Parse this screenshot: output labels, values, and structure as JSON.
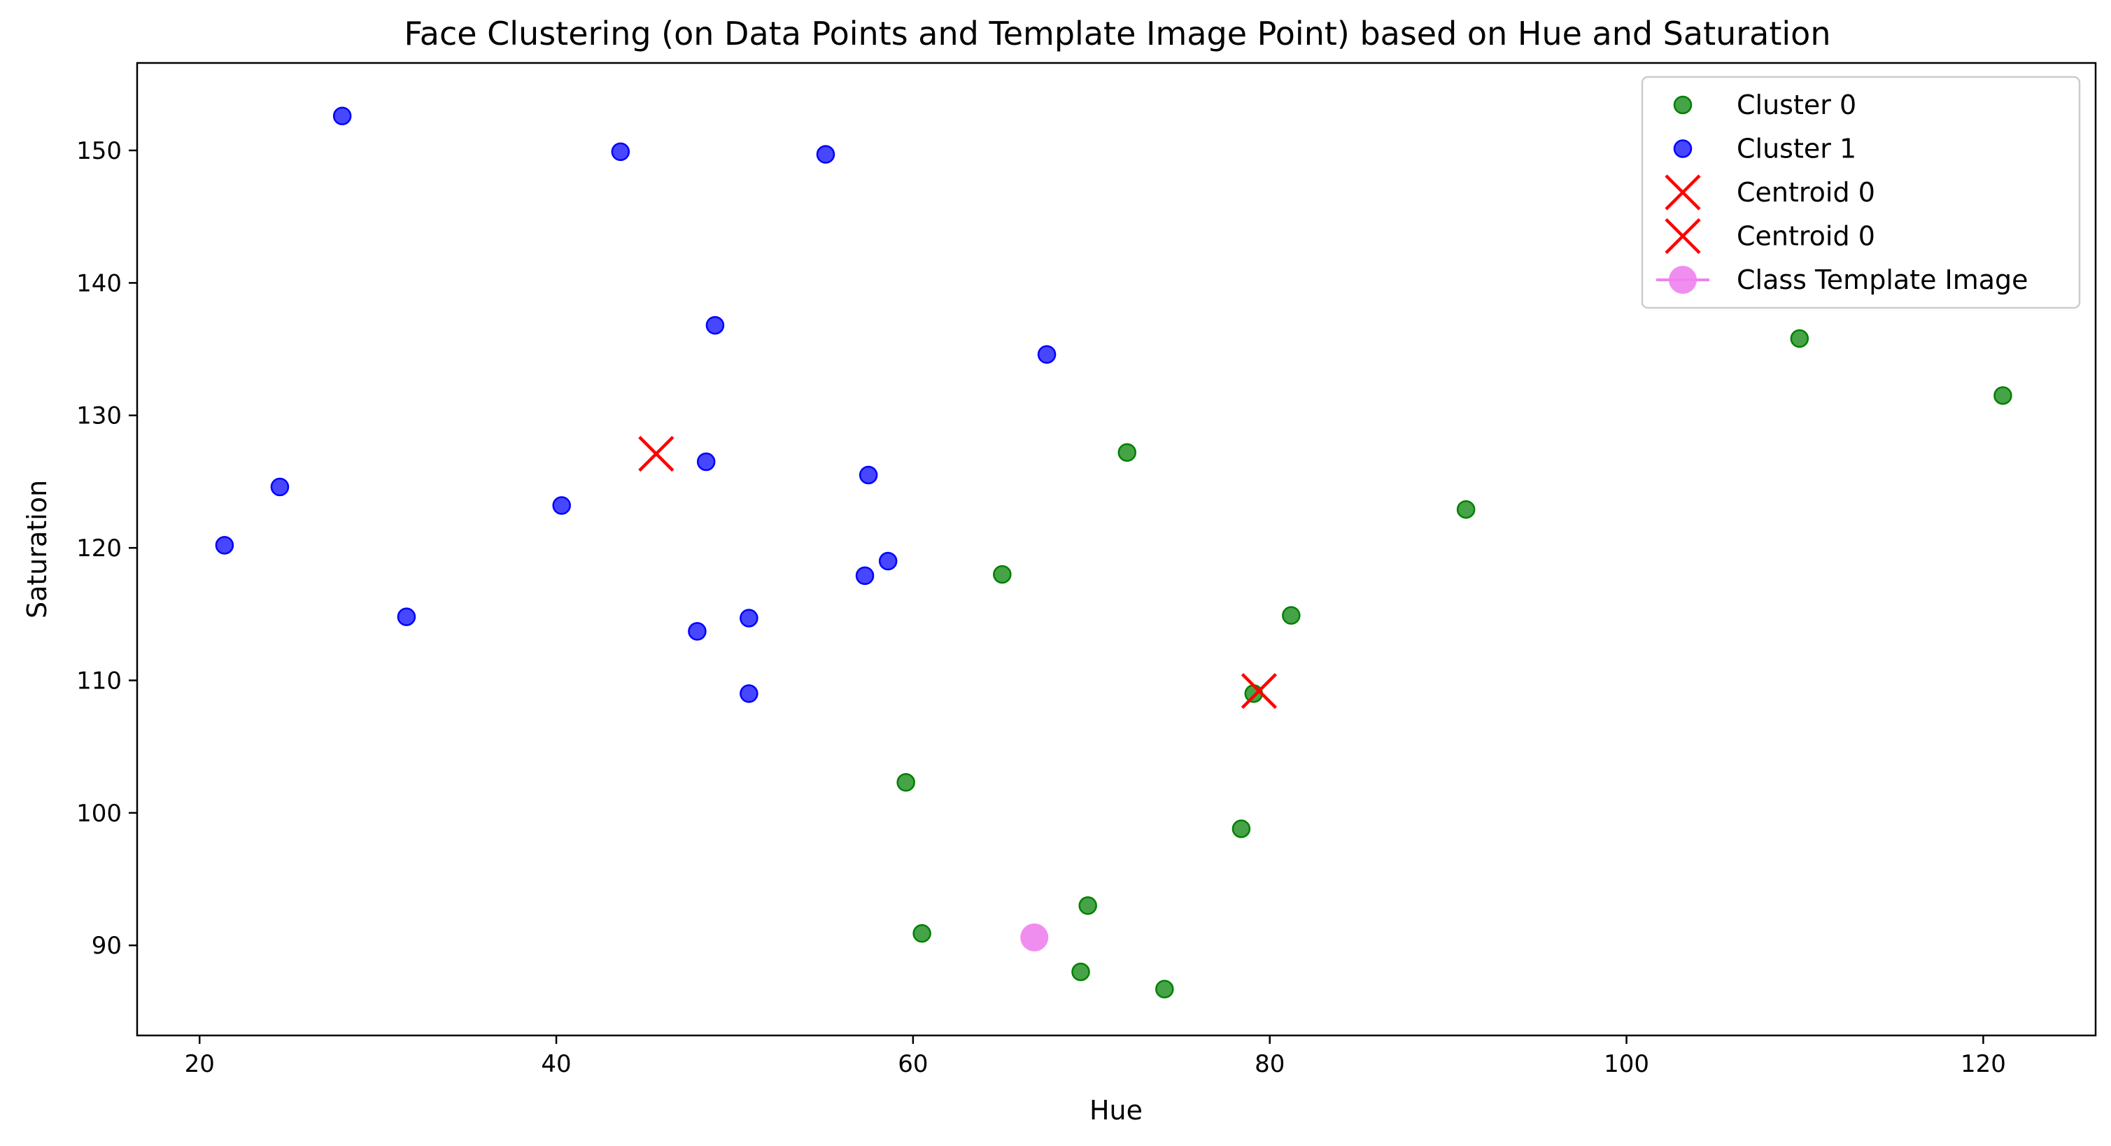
{
  "chart_data": {
    "type": "scatter",
    "title": "Face Clustering (on Data Points and Template Image Point) based on Hue and Saturation",
    "xlabel": "Hue",
    "ylabel": "Saturation",
    "xlim": [
      16.5,
      126.3
    ],
    "ylim": [
      83.2,
      156.6
    ],
    "xticks": [
      20,
      40,
      60,
      80,
      100,
      120
    ],
    "yticks": [
      90,
      100,
      110,
      120,
      130,
      140,
      150
    ],
    "grid": false,
    "legend_position": "top-right",
    "series": [
      {
        "name": "Cluster 0",
        "marker": "circle",
        "color": "#008000",
        "points": [
          {
            "x": 59.6,
            "y": 102.3
          },
          {
            "x": 60.5,
            "y": 90.9
          },
          {
            "x": 65.0,
            "y": 118.0
          },
          {
            "x": 69.4,
            "y": 88.0
          },
          {
            "x": 69.8,
            "y": 93.0
          },
          {
            "x": 72.0,
            "y": 127.2
          },
          {
            "x": 74.1,
            "y": 86.7
          },
          {
            "x": 78.4,
            "y": 98.8
          },
          {
            "x": 79.1,
            "y": 109.0
          },
          {
            "x": 81.2,
            "y": 114.9
          },
          {
            "x": 91.0,
            "y": 122.9
          },
          {
            "x": 109.7,
            "y": 135.8
          },
          {
            "x": 121.1,
            "y": 131.5
          }
        ]
      },
      {
        "name": "Cluster 1",
        "marker": "circle",
        "color": "#0000ff",
        "points": [
          {
            "x": 21.4,
            "y": 120.2
          },
          {
            "x": 24.5,
            "y": 124.6
          },
          {
            "x": 28.0,
            "y": 152.6
          },
          {
            "x": 31.6,
            "y": 114.8
          },
          {
            "x": 40.3,
            "y": 123.2
          },
          {
            "x": 43.6,
            "y": 149.9
          },
          {
            "x": 47.9,
            "y": 113.7
          },
          {
            "x": 48.4,
            "y": 126.5
          },
          {
            "x": 48.9,
            "y": 136.8
          },
          {
            "x": 50.8,
            "y": 114.7
          },
          {
            "x": 50.8,
            "y": 109.0
          },
          {
            "x": 55.1,
            "y": 149.7
          },
          {
            "x": 57.3,
            "y": 117.9
          },
          {
            "x": 57.5,
            "y": 125.5
          },
          {
            "x": 58.6,
            "y": 119.0
          },
          {
            "x": 67.5,
            "y": 134.6
          }
        ]
      },
      {
        "name": "Centroid 0",
        "marker": "x",
        "color": "#ff0000",
        "points": [
          {
            "x": 45.6,
            "y": 127.1
          }
        ]
      },
      {
        "name": "Centroid 0",
        "marker": "x",
        "color": "#ff0000",
        "points": [
          {
            "x": 79.4,
            "y": 109.2
          }
        ]
      },
      {
        "name": "Class Template Image",
        "marker": "big-circle",
        "color": "#ee82ee",
        "points": [
          {
            "x": 66.8,
            "y": 90.6
          }
        ]
      }
    ]
  }
}
